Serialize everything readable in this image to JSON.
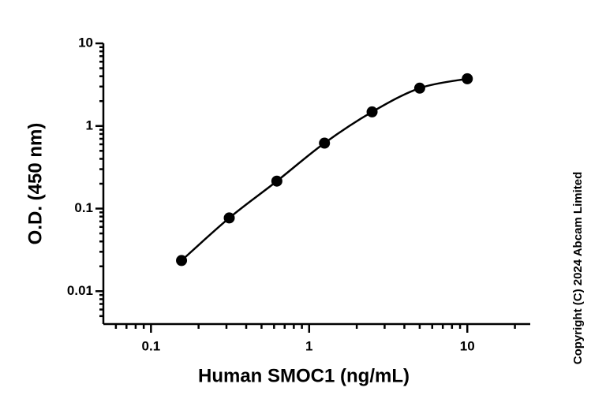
{
  "chart_data": {
    "type": "scatter",
    "x_label": "Human SMOC1 (ng/mL)",
    "y_label": "O.D. (450 nm)",
    "annotation": "Copyright (C) 2024 Abcam Limited",
    "xlog": true,
    "ylog": true,
    "xlim": [
      0.05,
      25
    ],
    "ylim": [
      0.004,
      10
    ],
    "xticks": [
      0.1,
      1,
      10
    ],
    "yticks": [
      0.01,
      0.1,
      1,
      10
    ],
    "series": [
      {
        "color": "#000000",
        "line": true,
        "x": [
          0.156,
          0.3125,
          0.625,
          1.25,
          2.5,
          5,
          10
        ],
        "values": [
          0.0235,
          0.077,
          0.215,
          0.62,
          1.48,
          2.87,
          3.73
        ]
      }
    ]
  }
}
